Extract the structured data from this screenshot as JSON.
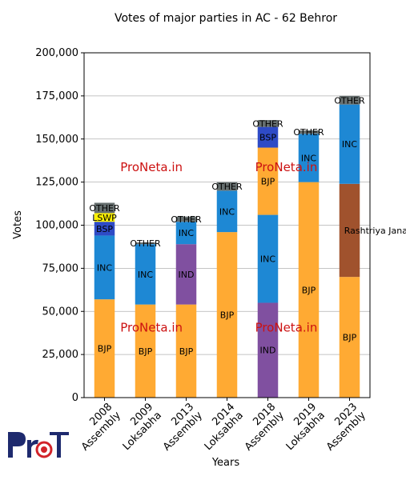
{
  "chart_data": {
    "type": "bar",
    "stacked": true,
    "title": "Votes of major parties in AC - 62 Behror",
    "xlabel": "Years",
    "ylabel": "Votes",
    "ylim": [
      0,
      200000
    ],
    "yticks": [
      0,
      25000,
      50000,
      75000,
      100000,
      125000,
      150000,
      175000,
      200000
    ],
    "ytick_labels": [
      "0",
      "25,000",
      "50,000",
      "75,000",
      "100,000",
      "125,000",
      "150,000",
      "175,000",
      "200,000"
    ],
    "grid": "horizontal",
    "categories": [
      [
        "2008",
        "Assembly"
      ],
      [
        "2009",
        "Loksabha"
      ],
      [
        "2013",
        "Assembly"
      ],
      [
        "2014",
        "Loksabha"
      ],
      [
        "2018",
        "Assembly"
      ],
      [
        "2019",
        "Loksabha"
      ],
      [
        "2023",
        "Assembly"
      ]
    ],
    "stacks": [
      [
        {
          "party": "BJP",
          "value": 57000,
          "color": "#FFAA33"
        },
        {
          "party": "INC",
          "value": 37000,
          "color": "#1E88D4"
        },
        {
          "party": "BSP",
          "value": 8000,
          "color": "#2E4BC6"
        },
        {
          "party": "LSWP",
          "value": 5000,
          "color": "#FFF200"
        },
        {
          "party": "OTHER",
          "value": 6000,
          "color": "#666F6F"
        }
      ],
      [
        {
          "party": "BJP",
          "value": 54000,
          "color": "#FFAA33"
        },
        {
          "party": "INC",
          "value": 35000,
          "color": "#1E88D4"
        },
        {
          "party": "OTHER",
          "value": 1000,
          "color": "#666F6F"
        }
      ],
      [
        {
          "party": "BJP",
          "value": 54000,
          "color": "#FFAA33"
        },
        {
          "party": "IND",
          "value": 35000,
          "color": "#8050A0"
        },
        {
          "party": "INC",
          "value": 13000,
          "color": "#1E88D4"
        },
        {
          "party": "OTHER",
          "value": 3000,
          "color": "#666F6F"
        }
      ],
      [
        {
          "party": "BJP",
          "value": 96000,
          "color": "#FFAA33"
        },
        {
          "party": "INC",
          "value": 24000,
          "color": "#1E88D4"
        },
        {
          "party": "OTHER",
          "value": 5000,
          "color": "#666F6F"
        }
      ],
      [
        {
          "party": "IND",
          "value": 55000,
          "color": "#8050A0"
        },
        {
          "party": "INC",
          "value": 51000,
          "color": "#1E88D4"
        },
        {
          "party": "BJP",
          "value": 39000,
          "color": "#FFAA33"
        },
        {
          "party": "BSP",
          "value": 12000,
          "color": "#2E4BC6"
        },
        {
          "party": "OTHER",
          "value": 4000,
          "color": "#666F6F"
        }
      ],
      [
        {
          "party": "BJP",
          "value": 125000,
          "color": "#FFAA33"
        },
        {
          "party": "INC",
          "value": 28000,
          "color": "#1E88D4"
        },
        {
          "party": "OTHER",
          "value": 2000,
          "color": "#666F6F"
        }
      ],
      [
        {
          "party": "BJP",
          "value": 70000,
          "color": "#FFAA33"
        },
        {
          "party": "Rashtriya Janata Sena",
          "value": 54000,
          "color": "#A0522D"
        },
        {
          "party": "INC",
          "value": 46000,
          "color": "#1E88D4"
        },
        {
          "party": "OTHER",
          "value": 5000,
          "color": "#666F6F"
        }
      ]
    ],
    "watermarks": [
      {
        "text": "ProNeta.in",
        "x_index": 1.15,
        "y": 134000
      },
      {
        "text": "ProNeta.in",
        "x_index": 4.45,
        "y": 134000
      },
      {
        "text": "ProNeta.in",
        "x_index": 1.15,
        "y": 41000
      },
      {
        "text": "ProNeta.in",
        "x_index": 4.45,
        "y": 41000
      }
    ],
    "watermark_color": "#CC1111"
  },
  "logo": {
    "text": "ProNeta"
  }
}
